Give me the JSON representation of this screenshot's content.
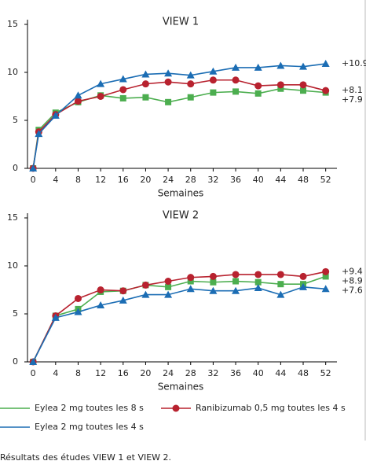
{
  "chart_data": [
    {
      "type": "line",
      "title": "VIEW 1",
      "x_label": "Semaines",
      "x": [
        0,
        1,
        4,
        8,
        12,
        16,
        20,
        24,
        28,
        32,
        36,
        40,
        44,
        48,
        52
      ],
      "xlim": [
        -1,
        54
      ],
      "xticks": [
        0,
        4,
        8,
        12,
        16,
        20,
        24,
        28,
        32,
        36,
        40,
        44,
        48,
        52
      ],
      "ylim": [
        0,
        15
      ],
      "yticks": [
        0,
        5,
        10,
        15
      ],
      "series": [
        {
          "name": "Eylea 2 mg toutes les 8 s",
          "color": "#4cae4f",
          "marker": "square",
          "values": [
            0,
            4.0,
            5.8,
            6.9,
            7.6,
            7.3,
            7.4,
            6.9,
            7.4,
            7.9,
            8.0,
            7.8,
            8.3,
            8.1,
            7.9
          ],
          "end_label": "+7.9"
        },
        {
          "name": "Ranibizumab 0,5 mg toutes les 4 s",
          "color": "#b8222f",
          "marker": "circle",
          "values": [
            0,
            3.8,
            5.6,
            7.0,
            7.5,
            8.2,
            8.8,
            9.0,
            8.8,
            9.2,
            9.2,
            8.6,
            8.7,
            8.7,
            8.1
          ],
          "end_label": "+8.1"
        },
        {
          "name": "Eylea 2 mg toutes les 4 s",
          "color": "#1b6db4",
          "marker": "triangle",
          "values": [
            0,
            3.6,
            5.5,
            7.6,
            8.8,
            9.3,
            9.8,
            9.9,
            9.7,
            10.1,
            10.5,
            10.5,
            10.7,
            10.6,
            10.9
          ],
          "end_label": "+10.9"
        }
      ]
    },
    {
      "type": "line",
      "title": "VIEW 2",
      "x_label": "Semaines",
      "x": [
        0,
        4,
        8,
        12,
        16,
        20,
        24,
        28,
        32,
        36,
        40,
        44,
        48,
        52
      ],
      "xlim": [
        -1,
        54
      ],
      "xticks": [
        0,
        4,
        8,
        12,
        16,
        20,
        24,
        28,
        32,
        36,
        40,
        44,
        48,
        52
      ],
      "ylim": [
        0,
        15
      ],
      "yticks": [
        0,
        5,
        10,
        15
      ],
      "series": [
        {
          "name": "Eylea 2 mg toutes les 8 s",
          "color": "#4cae4f",
          "marker": "square",
          "values": [
            0,
            4.8,
            5.5,
            7.3,
            7.4,
            8.0,
            7.8,
            8.4,
            8.3,
            8.4,
            8.3,
            8.1,
            8.1,
            8.9
          ],
          "end_label": "+8.9"
        },
        {
          "name": "Ranibizumab 0,5 mg toutes les 4 s",
          "color": "#b8222f",
          "marker": "circle",
          "values": [
            0,
            4.8,
            6.6,
            7.5,
            7.4,
            8.0,
            8.4,
            8.8,
            8.9,
            9.1,
            9.1,
            9.1,
            8.9,
            9.4
          ],
          "end_label": "+9.4"
        },
        {
          "name": "Eylea 2 mg toutes les 4 s",
          "color": "#1b6db4",
          "marker": "triangle",
          "values": [
            0,
            4.6,
            5.2,
            5.9,
            6.4,
            7.0,
            7.0,
            7.6,
            7.4,
            7.4,
            7.7,
            7.0,
            7.8,
            7.6
          ],
          "end_label": "+7.6"
        }
      ]
    }
  ],
  "caption": "Résultats des études VIEW 1 et VIEW 2."
}
